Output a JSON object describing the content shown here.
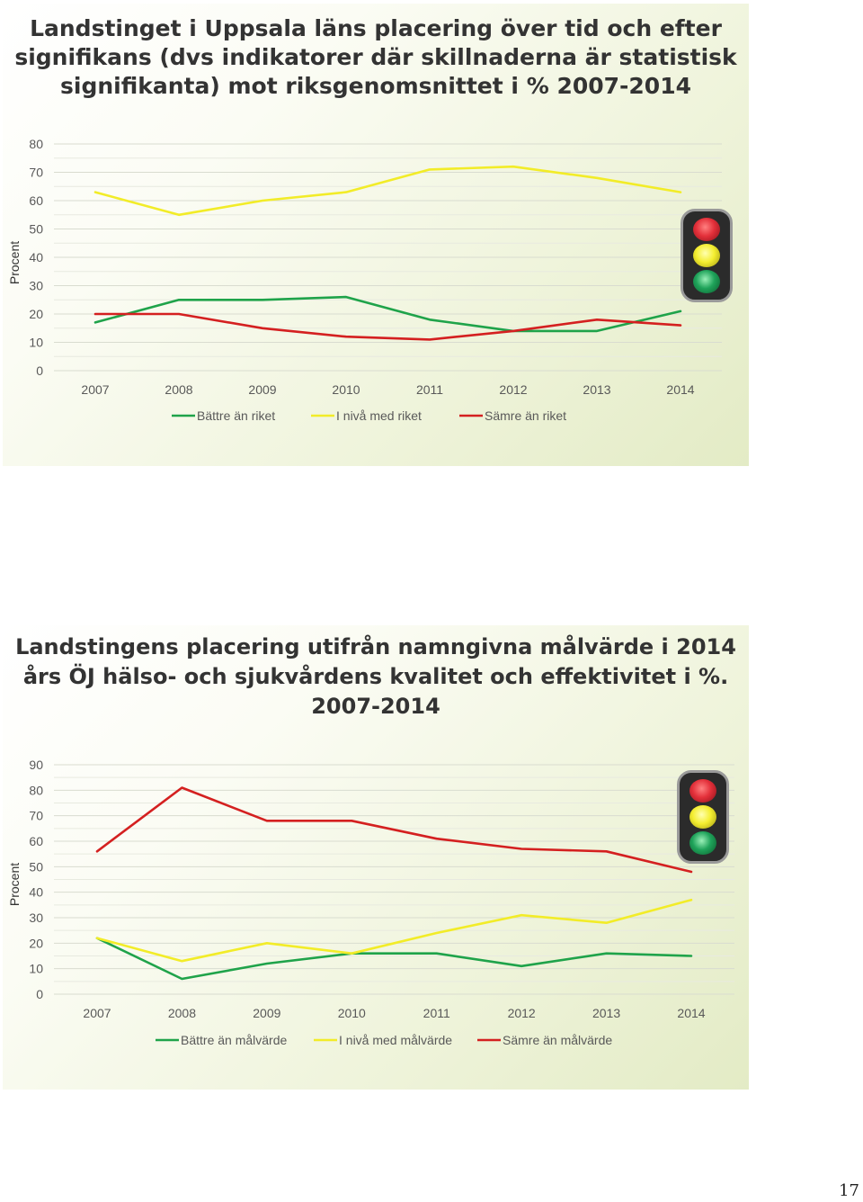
{
  "slides": [
    {
      "title": "Landstinget i Uppsala  läns placering över tid och efter\nsignifikans (dvs indikatorer där skillnaderna är statistisk\nsignifikanta) mot riksgenomsnittet i % 2007-2014"
    },
    {
      "title": "Landstingens placering utifrån namngivna målvärde i 2014\nårs ÖJ hälso- och sjukvårdens kvalitet och effektivitet i %.\n2007-2014"
    }
  ],
  "chart_data": [
    {
      "type": "line",
      "ylabel": "Procent",
      "ylim": [
        0,
        80
      ],
      "yticks": [
        0,
        10,
        20,
        30,
        40,
        50,
        60,
        70,
        80
      ],
      "categories": [
        "2007",
        "2008",
        "2009",
        "2010",
        "2011",
        "2012",
        "2013",
        "2014"
      ],
      "grid": true,
      "legend_position": "bottom",
      "series": [
        {
          "name": "Bättre än riket",
          "color": "#1fa34a",
          "values": [
            17,
            25,
            25,
            26,
            18,
            14,
            14,
            21
          ]
        },
        {
          "name": "I nivå med riket",
          "color": "#f2ec28",
          "values": [
            63,
            55,
            60,
            63,
            71,
            72,
            68,
            63
          ]
        },
        {
          "name": "Sämre än riket",
          "color": "#d42020",
          "values": [
            20,
            20,
            15,
            12,
            11,
            14,
            18,
            16
          ]
        }
      ]
    },
    {
      "type": "line",
      "ylabel": "Procent",
      "ylim": [
        0,
        90
      ],
      "yticks": [
        0,
        10,
        20,
        30,
        40,
        50,
        60,
        70,
        80,
        90
      ],
      "categories": [
        "2007",
        "2008",
        "2009",
        "2010",
        "2011",
        "2012",
        "2013",
        "2014"
      ],
      "grid": true,
      "legend_position": "bottom",
      "series": [
        {
          "name": "Bättre än målvärde",
          "color": "#1fa34a",
          "values": [
            22,
            6,
            12,
            16,
            16,
            11,
            16,
            15
          ]
        },
        {
          "name": "I nivå med målvärde",
          "color": "#f2ec28",
          "values": [
            22,
            13,
            20,
            16,
            24,
            31,
            28,
            37
          ]
        },
        {
          "name": "Sämre än målvärde",
          "color": "#d42020",
          "values": [
            56,
            81,
            68,
            68,
            61,
            57,
            56,
            48
          ]
        }
      ]
    }
  ],
  "icons": [
    "traffic-light-icon",
    "traffic-light-icon"
  ],
  "page_number": "17"
}
